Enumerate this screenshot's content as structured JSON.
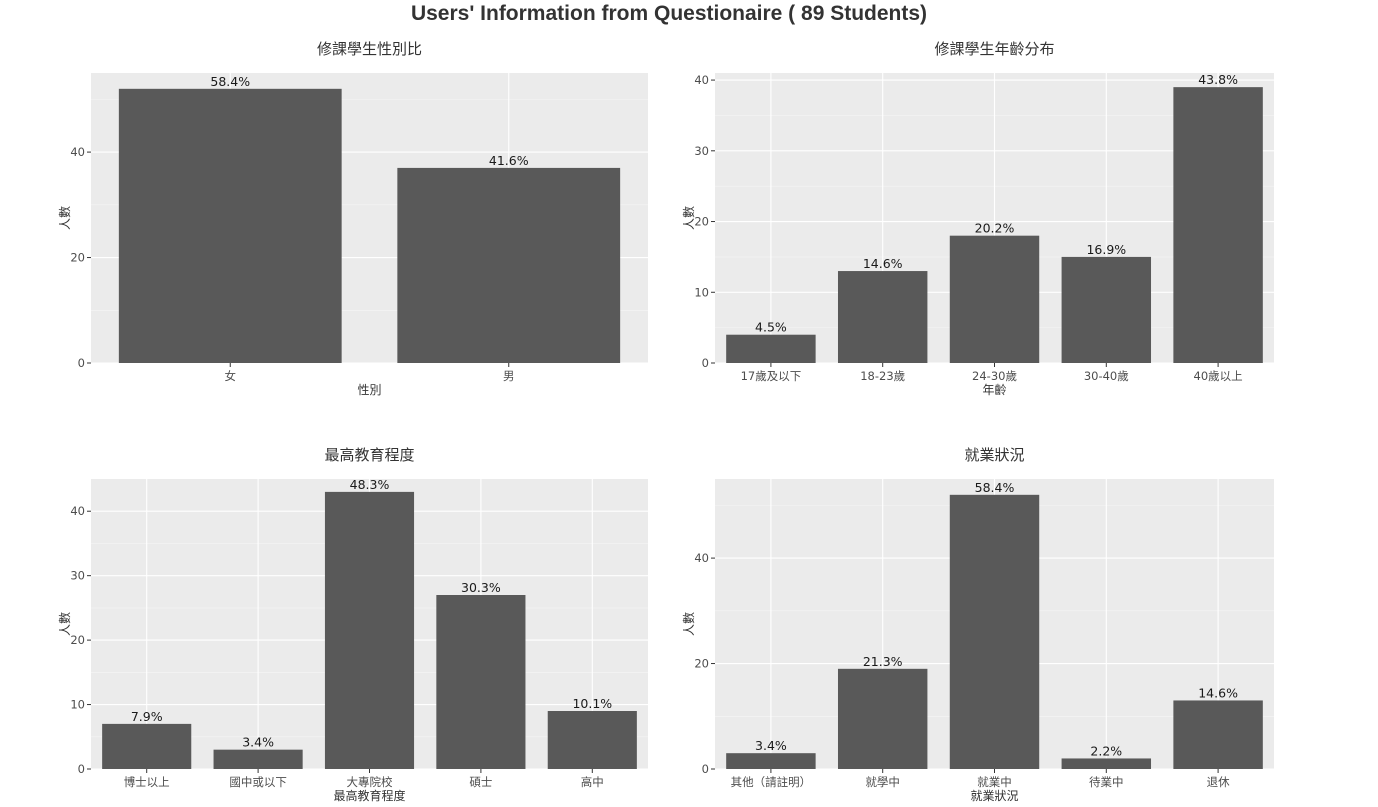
{
  "title": "Users' Information from Questionaire ( 89 Students)",
  "chart_data": [
    {
      "type": "bar",
      "title": "修課學生性別比",
      "xlabel": "性別",
      "ylabel": "人數",
      "categories": [
        "女",
        "男"
      ],
      "values": [
        52,
        37
      ],
      "labels": [
        "58.4%",
        "41.6%"
      ],
      "ylim": [
        0,
        55
      ],
      "yticks": [
        0,
        20,
        40
      ],
      "grid": true
    },
    {
      "type": "bar",
      "title": "修課學生年齡分布",
      "xlabel": "年齡",
      "ylabel": "人數",
      "categories": [
        "17歲及以下",
        "18-23歲",
        "24-30歲",
        "30-40歲",
        "40歲以上"
      ],
      "values": [
        4,
        13,
        18,
        15,
        39
      ],
      "labels": [
        "4.5%",
        "14.6%",
        "20.2%",
        "16.9%",
        "43.8%"
      ],
      "ylim": [
        0,
        41
      ],
      "yticks": [
        0,
        10,
        20,
        30,
        40
      ],
      "grid": true
    },
    {
      "type": "bar",
      "title": "最高教育程度",
      "xlabel": "最高教育程度",
      "ylabel": "人數",
      "categories": [
        "博士以上",
        "國中或以下",
        "大專院校",
        "碩士",
        "高中"
      ],
      "values": [
        7,
        3,
        43,
        27,
        9
      ],
      "labels": [
        "7.9%",
        "3.4%",
        "48.3%",
        "30.3%",
        "10.1%"
      ],
      "ylim": [
        0,
        45
      ],
      "yticks": [
        0,
        10,
        20,
        30,
        40
      ],
      "grid": true
    },
    {
      "type": "bar",
      "title": "就業狀況",
      "xlabel": "就業狀況",
      "ylabel": "人數",
      "categories": [
        "其他（請註明）",
        "就學中",
        "就業中",
        "待業中",
        "退休"
      ],
      "values": [
        3,
        19,
        52,
        2,
        13
      ],
      "labels": [
        "3.4%",
        "21.3%",
        "58.4%",
        "2.2%",
        "14.6%"
      ],
      "ylim": [
        0,
        55
      ],
      "yticks": [
        0,
        20,
        40
      ],
      "grid": true
    }
  ]
}
